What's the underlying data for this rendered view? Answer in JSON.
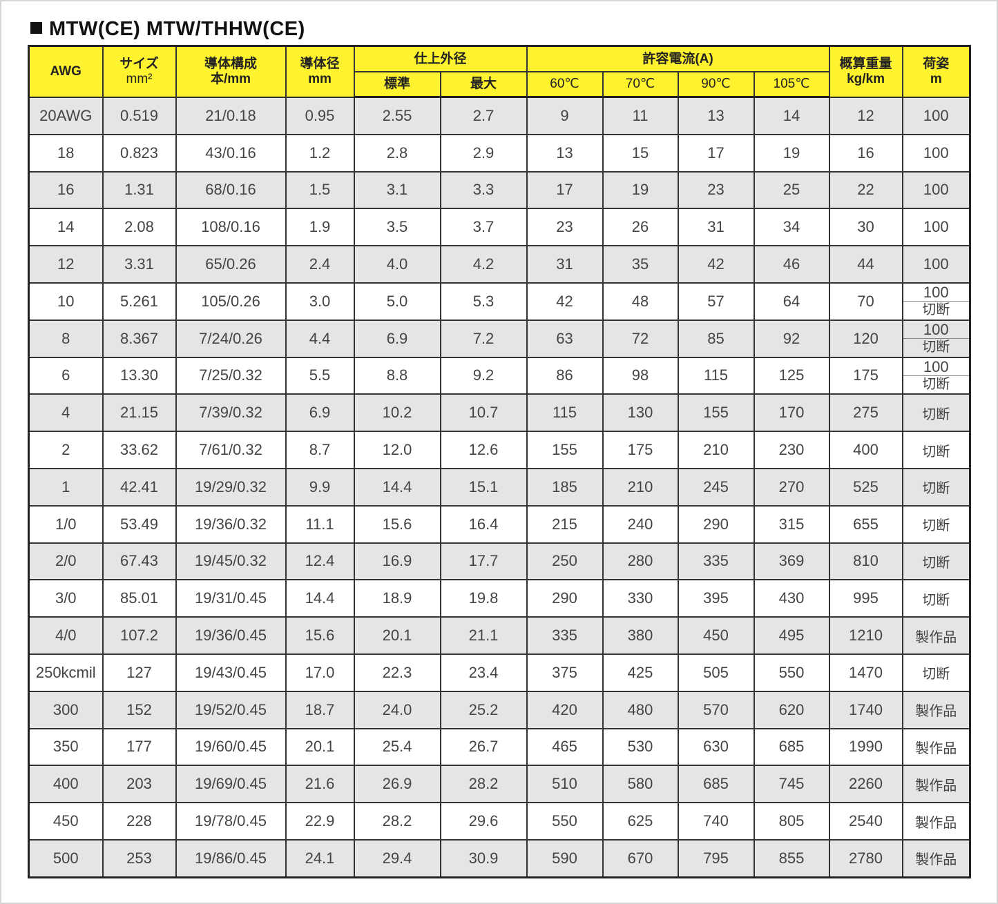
{
  "title": "MTW(CE)  MTW/THHW(CE)",
  "colors": {
    "header_bg": "#fff22e",
    "row_alt": "#e3e5e6"
  },
  "headers": {
    "awg": "AWG",
    "size": [
      "サイズ",
      "mm²"
    ],
    "conductor": [
      "導体構成",
      "本/mm"
    ],
    "diameter": [
      "導体径",
      "mm"
    ],
    "outer": "仕上外径",
    "outer_std": "標準",
    "outer_max": "最大",
    "current": "許容電流(A)",
    "c60": "60℃",
    "c70": "70℃",
    "c90": "90℃",
    "c105": "105℃",
    "weight": [
      "概算重量",
      "kg/km"
    ],
    "pack": [
      "荷姿",
      "m"
    ]
  },
  "rows": [
    {
      "awg": "20AWG",
      "size": "0.519",
      "cond": "21/0.18",
      "dia": "0.95",
      "std": "2.55",
      "max": "2.7",
      "a60": "9",
      "a70": "11",
      "a90": "13",
      "a105": "14",
      "wt": "12",
      "pack": [
        "100"
      ]
    },
    {
      "awg": "18",
      "size": "0.823",
      "cond": "43/0.16",
      "dia": "1.2",
      "std": "2.8",
      "max": "2.9",
      "a60": "13",
      "a70": "15",
      "a90": "17",
      "a105": "19",
      "wt": "16",
      "pack": [
        "100"
      ]
    },
    {
      "awg": "16",
      "size": "1.31",
      "cond": "68/0.16",
      "dia": "1.5",
      "std": "3.1",
      "max": "3.3",
      "a60": "17",
      "a70": "19",
      "a90": "23",
      "a105": "25",
      "wt": "22",
      "pack": [
        "100"
      ]
    },
    {
      "awg": "14",
      "size": "2.08",
      "cond": "108/0.16",
      "dia": "1.9",
      "std": "3.5",
      "max": "3.7",
      "a60": "23",
      "a70": "26",
      "a90": "31",
      "a105": "34",
      "wt": "30",
      "pack": [
        "100"
      ]
    },
    {
      "awg": "12",
      "size": "3.31",
      "cond": "65/0.26",
      "dia": "2.4",
      "std": "4.0",
      "max": "4.2",
      "a60": "31",
      "a70": "35",
      "a90": "42",
      "a105": "46",
      "wt": "44",
      "pack": [
        "100"
      ]
    },
    {
      "awg": "10",
      "size": "5.261",
      "cond": "105/0.26",
      "dia": "3.0",
      "std": "5.0",
      "max": "5.3",
      "a60": "42",
      "a70": "48",
      "a90": "57",
      "a105": "64",
      "wt": "70",
      "pack": [
        "100",
        "切断"
      ]
    },
    {
      "awg": "8",
      "size": "8.367",
      "cond": "7/24/0.26",
      "dia": "4.4",
      "std": "6.9",
      "max": "7.2",
      "a60": "63",
      "a70": "72",
      "a90": "85",
      "a105": "92",
      "wt": "120",
      "pack": [
        "100",
        "切断"
      ]
    },
    {
      "awg": "6",
      "size": "13.30",
      "cond": "7/25/0.32",
      "dia": "5.5",
      "std": "8.8",
      "max": "9.2",
      "a60": "86",
      "a70": "98",
      "a90": "115",
      "a105": "125",
      "wt": "175",
      "pack": [
        "100",
        "切断"
      ]
    },
    {
      "awg": "4",
      "size": "21.15",
      "cond": "7/39/0.32",
      "dia": "6.9",
      "std": "10.2",
      "max": "10.7",
      "a60": "115",
      "a70": "130",
      "a90": "155",
      "a105": "170",
      "wt": "275",
      "pack": [
        "切断"
      ]
    },
    {
      "awg": "2",
      "size": "33.62",
      "cond": "7/61/0.32",
      "dia": "8.7",
      "std": "12.0",
      "max": "12.6",
      "a60": "155",
      "a70": "175",
      "a90": "210",
      "a105": "230",
      "wt": "400",
      "pack": [
        "切断"
      ]
    },
    {
      "awg": "1",
      "size": "42.41",
      "cond": "19/29/0.32",
      "dia": "9.9",
      "std": "14.4",
      "max": "15.1",
      "a60": "185",
      "a70": "210",
      "a90": "245",
      "a105": "270",
      "wt": "525",
      "pack": [
        "切断"
      ]
    },
    {
      "awg": "1/0",
      "size": "53.49",
      "cond": "19/36/0.32",
      "dia": "11.1",
      "std": "15.6",
      "max": "16.4",
      "a60": "215",
      "a70": "240",
      "a90": "290",
      "a105": "315",
      "wt": "655",
      "pack": [
        "切断"
      ]
    },
    {
      "awg": "2/0",
      "size": "67.43",
      "cond": "19/45/0.32",
      "dia": "12.4",
      "std": "16.9",
      "max": "17.7",
      "a60": "250",
      "a70": "280",
      "a90": "335",
      "a105": "369",
      "wt": "810",
      "pack": [
        "切断"
      ]
    },
    {
      "awg": "3/0",
      "size": "85.01",
      "cond": "19/31/0.45",
      "dia": "14.4",
      "std": "18.9",
      "max": "19.8",
      "a60": "290",
      "a70": "330",
      "a90": "395",
      "a105": "430",
      "wt": "995",
      "pack": [
        "切断"
      ]
    },
    {
      "awg": "4/0",
      "size": "107.2",
      "cond": "19/36/0.45",
      "dia": "15.6",
      "std": "20.1",
      "max": "21.1",
      "a60": "335",
      "a70": "380",
      "a90": "450",
      "a105": "495",
      "wt": "1210",
      "pack": [
        "製作品"
      ]
    },
    {
      "awg": "250kcmil",
      "size": "127",
      "cond": "19/43/0.45",
      "dia": "17.0",
      "std": "22.3",
      "max": "23.4",
      "a60": "375",
      "a70": "425",
      "a90": "505",
      "a105": "550",
      "wt": "1470",
      "pack": [
        "切断"
      ]
    },
    {
      "awg": "300",
      "size": "152",
      "cond": "19/52/0.45",
      "dia": "18.7",
      "std": "24.0",
      "max": "25.2",
      "a60": "420",
      "a70": "480",
      "a90": "570",
      "a105": "620",
      "wt": "1740",
      "pack": [
        "製作品"
      ]
    },
    {
      "awg": "350",
      "size": "177",
      "cond": "19/60/0.45",
      "dia": "20.1",
      "std": "25.4",
      "max": "26.7",
      "a60": "465",
      "a70": "530",
      "a90": "630",
      "a105": "685",
      "wt": "1990",
      "pack": [
        "製作品"
      ]
    },
    {
      "awg": "400",
      "size": "203",
      "cond": "19/69/0.45",
      "dia": "21.6",
      "std": "26.9",
      "max": "28.2",
      "a60": "510",
      "a70": "580",
      "a90": "685",
      "a105": "745",
      "wt": "2260",
      "pack": [
        "製作品"
      ]
    },
    {
      "awg": "450",
      "size": "228",
      "cond": "19/78/0.45",
      "dia": "22.9",
      "std": "28.2",
      "max": "29.6",
      "a60": "550",
      "a70": "625",
      "a90": "740",
      "a105": "805",
      "wt": "2540",
      "pack": [
        "製作品"
      ]
    },
    {
      "awg": "500",
      "size": "253",
      "cond": "19/86/0.45",
      "dia": "24.1",
      "std": "29.4",
      "max": "30.9",
      "a60": "590",
      "a70": "670",
      "a90": "795",
      "a105": "855",
      "wt": "2780",
      "pack": [
        "製作品"
      ]
    }
  ]
}
